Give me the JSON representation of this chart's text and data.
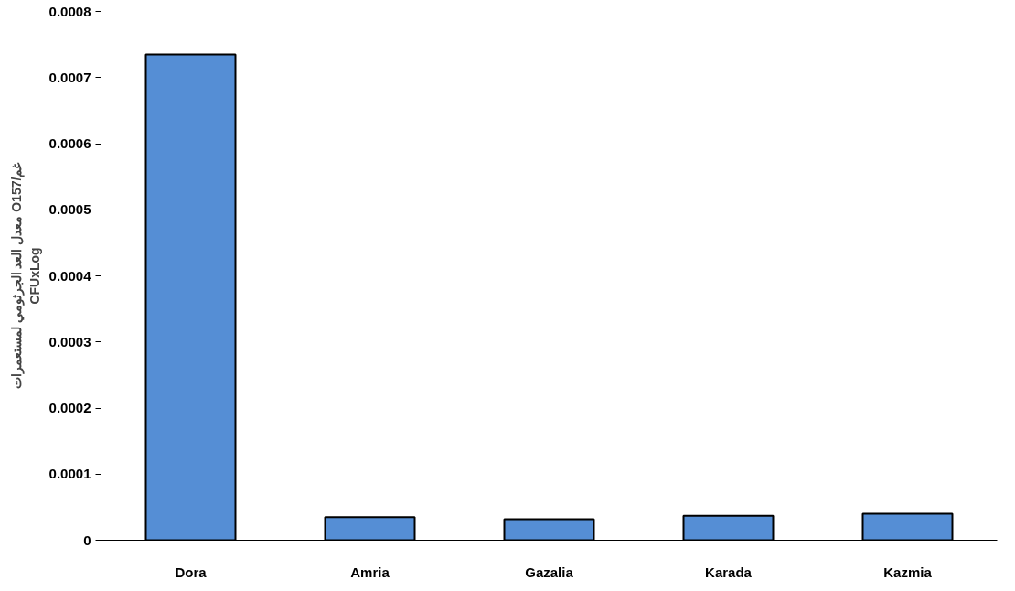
{
  "chart_data": {
    "type": "bar",
    "ylabel": "معدل العد الجرثومي لمستعمرات O157/غم\nCFUxLog",
    "categories": [
      "Dora",
      "Amria",
      "Gazalia",
      "Karada",
      "Kazmia"
    ],
    "values": [
      0.000735,
      3.5e-05,
      3.2e-05,
      3.7e-05,
      4e-05
    ],
    "color": "#558ed5",
    "ylim": [
      0,
      0.0008
    ],
    "yticks": [
      0,
      0.0001,
      0.0002,
      0.0003,
      0.0004,
      0.0005,
      0.0006,
      0.0007,
      0.0008
    ],
    "grid": false
  }
}
